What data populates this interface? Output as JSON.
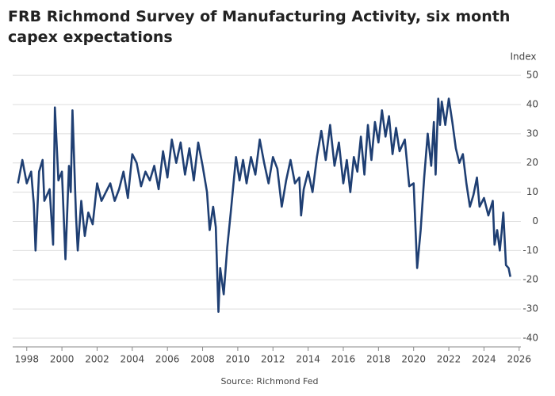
{
  "chart_data": {
    "type": "line",
    "title": "FRB Richmond Survey of Manufacturing Activity, six month capex expectations",
    "y_axis_label": "Index",
    "source": "Source: Richmond Fed",
    "series": [
      {
        "name": "Six month capex expectations",
        "color": "#1f3f73",
        "x": [
          1997.5,
          1997.75,
          1998.0,
          1998.25,
          1998.4,
          1998.5,
          1998.7,
          1998.9,
          1999.0,
          1999.3,
          1999.5,
          1999.6,
          1999.8,
          2000.0,
          2000.2,
          2000.4,
          2000.5,
          2000.6,
          2000.8,
          2000.9,
          2001.1,
          2001.3,
          2001.5,
          2001.75,
          2002.0,
          2002.25,
          2002.5,
          2002.75,
          2003.0,
          2003.25,
          2003.5,
          2003.75,
          2004.0,
          2004.25,
          2004.5,
          2004.75,
          2005.0,
          2005.25,
          2005.5,
          2005.75,
          2006.0,
          2006.25,
          2006.5,
          2006.75,
          2007.0,
          2007.25,
          2007.5,
          2007.75,
          2008.0,
          2008.25,
          2008.4,
          2008.6,
          2008.75,
          2008.9,
          2009.0,
          2009.2,
          2009.4,
          2009.6,
          2009.9,
          2010.1,
          2010.3,
          2010.5,
          2010.75,
          2011.0,
          2011.25,
          2011.5,
          2011.75,
          2012.0,
          2012.25,
          2012.5,
          2012.75,
          2013.0,
          2013.25,
          2013.5,
          2013.6,
          2013.75,
          2014.0,
          2014.25,
          2014.5,
          2014.75,
          2015.0,
          2015.25,
          2015.5,
          2015.75,
          2016.0,
          2016.2,
          2016.4,
          2016.6,
          2016.8,
          2017.0,
          2017.2,
          2017.4,
          2017.6,
          2017.8,
          2018.0,
          2018.2,
          2018.4,
          2018.6,
          2018.8,
          2019.0,
          2019.2,
          2019.5,
          2019.75,
          2020.0,
          2020.2,
          2020.4,
          2020.6,
          2020.8,
          2021.0,
          2021.15,
          2021.25,
          2021.4,
          2021.5,
          2021.6,
          2021.8,
          2022.0,
          2022.2,
          2022.4,
          2022.6,
          2022.8,
          2023.0,
          2023.2,
          2023.4,
          2023.6,
          2023.75,
          2024.0,
          2024.25,
          2024.5,
          2024.6,
          2024.75,
          2024.9,
          2025.0,
          2025.1,
          2025.25,
          2025.4,
          2025.5
        ],
        "values": [
          13,
          21,
          13,
          17,
          6,
          -10,
          17,
          21,
          7,
          11,
          -8,
          39,
          14,
          17,
          -13,
          19,
          10,
          38,
          2,
          -10,
          7,
          -5,
          3,
          -1,
          13,
          7,
          10,
          13,
          7,
          11,
          17,
          8,
          23,
          20,
          12,
          17,
          14,
          19,
          11,
          24,
          15,
          28,
          20,
          27,
          16,
          25,
          14,
          27,
          19,
          10,
          -3,
          5,
          -2,
          -31,
          -16,
          -25,
          -9,
          3,
          22,
          14,
          21,
          13,
          22,
          16,
          28,
          20,
          13,
          22,
          18,
          5,
          14,
          21,
          13,
          15,
          2,
          11,
          17,
          10,
          22,
          31,
          21,
          33,
          19,
          27,
          13,
          21,
          10,
          22,
          17,
          29,
          16,
          33,
          21,
          34,
          27,
          38,
          29,
          36,
          23,
          32,
          24,
          28,
          12,
          13,
          -16,
          -3,
          15,
          30,
          19,
          34,
          16,
          42,
          33,
          41,
          33,
          42,
          34,
          25,
          20,
          23,
          13,
          5,
          9,
          15,
          5,
          8,
          2,
          7,
          -8,
          -3,
          -10,
          -4,
          3,
          -15,
          -16,
          -19
        ]
      }
    ],
    "xlim": [
      1997.2,
      2026.1
    ],
    "xticks": [
      1998,
      2000,
      2002,
      2004,
      2006,
      2008,
      2010,
      2012,
      2014,
      2016,
      2018,
      2020,
      2022,
      2024,
      2026
    ],
    "ylim": [
      -43,
      53
    ],
    "yticks": [
      -40,
      -30,
      -20,
      -10,
      0,
      10,
      20,
      30,
      40,
      50
    ],
    "grid": true
  }
}
